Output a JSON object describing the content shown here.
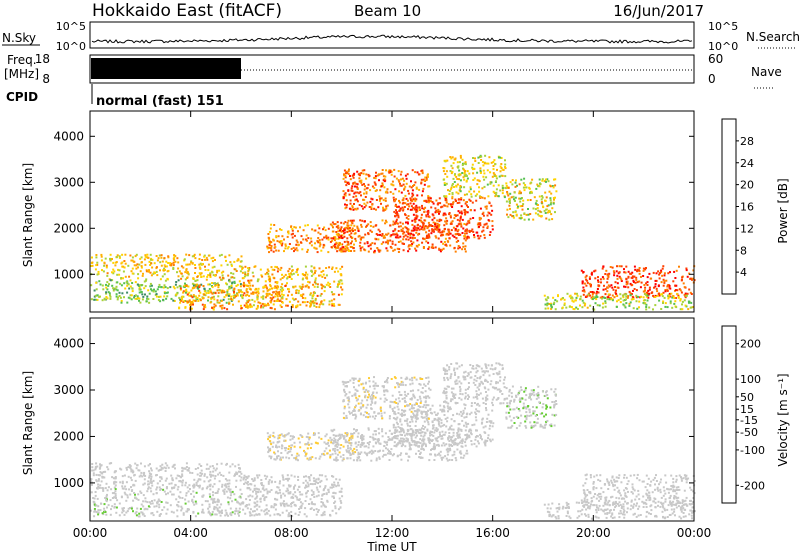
{
  "header": {
    "station": "Hokkaido East (fitACF)",
    "beam": "Beam 10",
    "date": "16/Jun/2017"
  },
  "noise_panel": {
    "left_label": "N.Sky",
    "right_label": "N.Search",
    "left_ticks": [
      "10^5",
      "10^0"
    ],
    "right_ticks": [
      "10^5",
      "10^0"
    ]
  },
  "freq_panel": {
    "label_line1": "Freq.",
    "label_line2": "[MHz]",
    "ticks": [
      "18",
      "8"
    ],
    "right_label": "Nave",
    "right_ticks": [
      "60",
      "0"
    ]
  },
  "cpid_panel": {
    "label": "CPID",
    "text": "normal (fast) 151"
  },
  "colors": {
    "power_scale": [
      "#0000ff",
      "#1a44b0",
      "#3c8a66",
      "#55c050",
      "#a8d23a",
      "#ffd400",
      "#ffb000",
      "#ff8000",
      "#ff4000",
      "#ff0000"
    ],
    "velocity_scale": [
      "#ff0000",
      "#ff6600",
      "#ff9900",
      "#ffcc33",
      "#c8c8c8",
      "#c8c8c8",
      "#66cc33",
      "#339966",
      "#336699",
      "#0000cc"
    ]
  },
  "chart_data": [
    {
      "type": "heatmap",
      "name": "power",
      "xlabel": "",
      "ylabel": "Slant Range [km]",
      "x_ticks": [
        "00:00",
        "04:00",
        "08:00",
        "12:00",
        "16:00",
        "20:00",
        "00:00"
      ],
      "y_ticks": [
        1000,
        2000,
        3000,
        4000
      ],
      "ylim": [
        180,
        4550
      ],
      "colorbar": {
        "label": "Power [dB]",
        "ticks": [
          4,
          8,
          12,
          16,
          20,
          24,
          28
        ],
        "range": [
          0,
          32
        ]
      },
      "patches": [
        {
          "t": [
            0.0,
            6.0
          ],
          "r": [
            900,
            1450
          ],
          "v": [
            14,
            24
          ]
        },
        {
          "t": [
            0.0,
            6.0
          ],
          "r": [
            400,
            900
          ],
          "v": [
            8,
            18
          ]
        },
        {
          "t": [
            3.5,
            7.5
          ],
          "r": [
            250,
            800
          ],
          "v": [
            16,
            28
          ]
        },
        {
          "t": [
            6.0,
            10.0
          ],
          "r": [
            300,
            1200
          ],
          "v": [
            14,
            26
          ]
        },
        {
          "t": [
            7.0,
            10.5
          ],
          "r": [
            1500,
            2100
          ],
          "v": [
            18,
            28
          ]
        },
        {
          "t": [
            9.5,
            15.0
          ],
          "r": [
            1500,
            2200
          ],
          "v": [
            22,
            30
          ]
        },
        {
          "t": [
            10.0,
            13.5
          ],
          "r": [
            2400,
            3300
          ],
          "v": [
            20,
            30
          ]
        },
        {
          "t": [
            12.0,
            16.0
          ],
          "r": [
            1800,
            2700
          ],
          "v": [
            24,
            30
          ]
        },
        {
          "t": [
            14.0,
            16.5
          ],
          "r": [
            2700,
            3600
          ],
          "v": [
            12,
            22
          ]
        },
        {
          "t": [
            16.5,
            18.5
          ],
          "r": [
            2200,
            3100
          ],
          "v": [
            10,
            24
          ]
        },
        {
          "t": [
            19.5,
            24.0
          ],
          "r": [
            500,
            1200
          ],
          "v": [
            24,
            31
          ]
        },
        {
          "t": [
            18.0,
            24.0
          ],
          "r": [
            250,
            600
          ],
          "v": [
            10,
            20
          ]
        }
      ]
    },
    {
      "type": "heatmap",
      "name": "velocity",
      "xlabel": "Time UT",
      "ylabel": "Slant Range [km]",
      "x_ticks": [
        "00:00",
        "04:00",
        "08:00",
        "12:00",
        "16:00",
        "20:00",
        "00:00"
      ],
      "y_ticks": [
        1000,
        2000,
        3000,
        4000
      ],
      "ylim": [
        180,
        4550
      ],
      "colorbar": {
        "label": "Velocity [m s⁻¹]",
        "ticks": [
          -200,
          -100,
          -50,
          -15,
          15,
          50,
          100,
          200
        ],
        "range": [
          -250,
          250
        ]
      },
      "patches": [
        {
          "t": [
            0.0,
            6.0
          ],
          "r": [
            900,
            1450
          ],
          "v": [
            -15,
            15
          ]
        },
        {
          "t": [
            0.0,
            6.0
          ],
          "r": [
            300,
            900
          ],
          "v": [
            -30,
            60
          ]
        },
        {
          "t": [
            6.0,
            10.0
          ],
          "r": [
            300,
            1200
          ],
          "v": [
            -20,
            20
          ]
        },
        {
          "t": [
            7.0,
            10.5
          ],
          "r": [
            1500,
            2100
          ],
          "v": [
            -80,
            10
          ]
        },
        {
          "t": [
            9.5,
            15.0
          ],
          "r": [
            1500,
            2200
          ],
          "v": [
            -15,
            15
          ]
        },
        {
          "t": [
            10.0,
            13.5
          ],
          "r": [
            2400,
            3300
          ],
          "v": [
            -60,
            15
          ]
        },
        {
          "t": [
            12.0,
            16.0
          ],
          "r": [
            1800,
            2700
          ],
          "v": [
            -15,
            15
          ]
        },
        {
          "t": [
            14.0,
            16.5
          ],
          "r": [
            2700,
            3600
          ],
          "v": [
            -15,
            30
          ]
        },
        {
          "t": [
            16.5,
            18.5
          ],
          "r": [
            2200,
            3100
          ],
          "v": [
            15,
            60
          ]
        },
        {
          "t": [
            19.5,
            24.0
          ],
          "r": [
            500,
            1200
          ],
          "v": [
            -15,
            15
          ]
        },
        {
          "t": [
            18.0,
            24.0
          ],
          "r": [
            250,
            600
          ],
          "v": [
            -40,
            40
          ]
        }
      ]
    }
  ]
}
